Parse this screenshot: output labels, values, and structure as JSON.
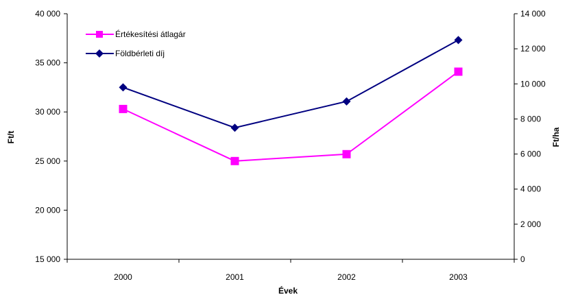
{
  "chart_data": {
    "type": "line",
    "title": "",
    "xlabel": "Évek",
    "ylabel_left": "Ft/t",
    "ylabel_right": "Ft/ha",
    "categories": [
      "2000",
      "2001",
      "2002",
      "2003"
    ],
    "y_left": {
      "min": 15000,
      "max": 40000,
      "step": 5000,
      "tick_labels": [
        "15 000",
        "20 000",
        "25 000",
        "30 000",
        "35 000",
        "40 000"
      ]
    },
    "y_right": {
      "min": 0,
      "max": 14000,
      "step": 2000,
      "tick_labels": [
        "0",
        "2 000",
        "4 000",
        "6 000",
        "8 000",
        "10 000",
        "12 000",
        "14 000"
      ]
    },
    "grid": false,
    "legend_position": "top-left",
    "series": [
      {
        "name": "Értékesítési átlagár",
        "axis": "left",
        "marker": "square",
        "color": "#ff00ff",
        "values": [
          30300,
          25000,
          25700,
          34100
        ]
      },
      {
        "name": "Földbérleti díj",
        "axis": "right",
        "marker": "diamond",
        "color": "#000080",
        "values": [
          9800,
          7500,
          9000,
          12500
        ]
      }
    ]
  }
}
